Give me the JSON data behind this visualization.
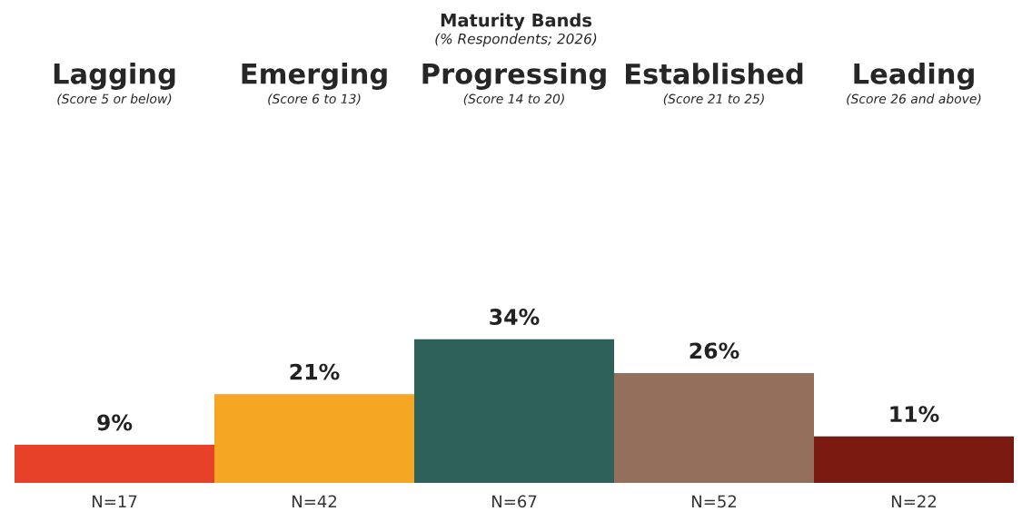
{
  "chart_data": {
    "type": "bar",
    "title": "Maturity Bands",
    "subtitle": "(% Respondents; 2026)",
    "categories": [
      "Lagging",
      "Emerging",
      "Progressing",
      "Established",
      "Leading"
    ],
    "values": [
      9,
      21,
      34,
      26,
      11
    ],
    "colors": [
      "#e8412a",
      "#f5a623",
      "#2e6159",
      "#94705c",
      "#7b1a10"
    ],
    "value_labels": [
      "9%",
      "21%",
      "34%",
      "26%",
      "11%"
    ],
    "annotations": [
      "(Score 5 or below)",
      "(Score 6 to 13)",
      "(Score 14 to 20)",
      "(Score 21 to 25)",
      "(Score 26 and above)",
      "N=17",
      "N=42",
      "N=67",
      "N=52",
      "N=22"
    ],
    "legend": false
  }
}
